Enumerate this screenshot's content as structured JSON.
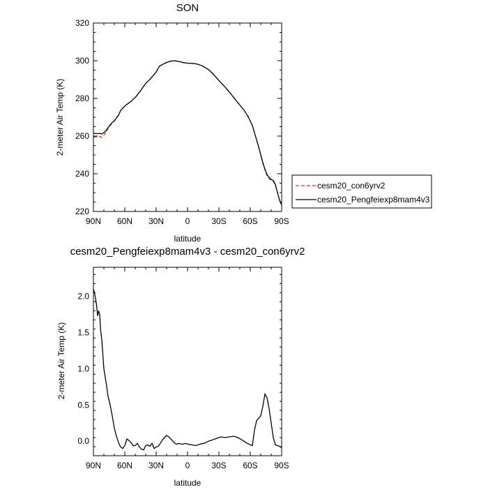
{
  "chart_data": [
    {
      "type": "line",
      "title": "SON",
      "xlabel": "latitude",
      "ylabel": "2-meter Air Temp (K)",
      "xlim": [
        90,
        -90
      ],
      "ylim": [
        220,
        320
      ],
      "x_ticks": [
        90,
        60,
        30,
        0,
        -30,
        -60,
        -90
      ],
      "x_tick_labels": [
        "90N",
        "60N",
        "30N",
        "0",
        "30S",
        "60S",
        "90S"
      ],
      "y_ticks": [
        220,
        240,
        260,
        280,
        300,
        320
      ],
      "y_tick_labels": [
        "220",
        "240",
        "260",
        "280",
        "300",
        "320"
      ],
      "legend_position": "right",
      "series": [
        {
          "name": "cesm20_con6yrv2",
          "color": "#e03030",
          "dash": "dashed",
          "x": [
            90,
            86,
            84,
            82,
            80,
            78,
            76,
            72,
            70,
            66,
            64,
            60,
            54,
            50,
            45,
            40,
            36,
            30,
            27,
            24,
            20,
            16,
            12,
            8,
            4,
            0,
            -6,
            -10,
            -14,
            -20,
            -24,
            -30,
            -36,
            -42,
            -48,
            -54,
            -58,
            -62,
            -66,
            -69,
            -72,
            -74,
            -76,
            -78,
            -80,
            -82,
            -84,
            -86,
            -88,
            -90
          ],
          "y": [
            259.5,
            259.5,
            259.8,
            259.3,
            260.5,
            262.0,
            264.0,
            267.0,
            268.0,
            271.0,
            273.5,
            276.0,
            278.5,
            280.5,
            284.0,
            288.0,
            290.0,
            294.0,
            297.0,
            298.0,
            299.0,
            299.7,
            299.9,
            299.6,
            299.0,
            298.7,
            298.5,
            298.1,
            297.3,
            295.3,
            293.3,
            289.5,
            286.0,
            282.0,
            277.8,
            273.8,
            270.3,
            265.5,
            258.0,
            252.0,
            245.5,
            242.0,
            239.0,
            237.5,
            236.5,
            236.0,
            234.0,
            230.0,
            226.0,
            223.5
          ]
        },
        {
          "name": "cesm20_Pengfeiexp8mam4v3",
          "color": "#000000",
          "dash": "solid",
          "x": [
            90,
            86,
            84,
            82,
            80,
            78,
            76,
            72,
            70,
            66,
            64,
            60,
            54,
            50,
            45,
            40,
            36,
            30,
            27,
            24,
            20,
            16,
            12,
            8,
            4,
            0,
            -6,
            -10,
            -14,
            -20,
            -24,
            -30,
            -36,
            -42,
            -48,
            -54,
            -58,
            -62,
            -66,
            -69,
            -72,
            -74,
            -76,
            -78,
            -80,
            -82,
            -84,
            -86,
            -88,
            -90
          ],
          "y": [
            261.5,
            261.3,
            261.4,
            261.2,
            261.8,
            262.8,
            264.5,
            267.3,
            268.1,
            271.1,
            273.6,
            276.0,
            278.5,
            280.5,
            284.0,
            288.0,
            290.1,
            294.0,
            297.0,
            298.0,
            299.1,
            299.8,
            300.0,
            299.6,
            299.0,
            298.7,
            298.5,
            298.1,
            297.3,
            295.3,
            293.3,
            289.5,
            286.0,
            282.0,
            277.8,
            273.8,
            270.3,
            265.6,
            258.1,
            252.3,
            246.0,
            242.5,
            239.6,
            238.0,
            237.0,
            236.4,
            234.3,
            230.0,
            226.0,
            223.5
          ]
        }
      ]
    },
    {
      "type": "line",
      "title": "cesm20_Pengfeiexp8mam4v3 - cesm20_con6yrv2",
      "xlabel": "latitude",
      "ylabel": "2-meter Air Temp (K)",
      "xlim": [
        90,
        -90
      ],
      "ylim": [
        -0.2,
        2.4
      ],
      "x_ticks": [
        90,
        60,
        30,
        0,
        -30,
        -60,
        -90
      ],
      "x_tick_labels": [
        "90N",
        "60N",
        "30N",
        "0",
        "30S",
        "60S",
        "90S"
      ],
      "y_ticks": [
        0.0,
        0.5,
        1.0,
        1.5,
        2.0
      ],
      "y_tick_labels": [
        "0.0",
        "0.5",
        "1.0",
        "1.5",
        "2.0"
      ],
      "series": [
        {
          "color": "#000000",
          "dash": "solid",
          "x": [
            90,
            89,
            88,
            87,
            86,
            85,
            84,
            83,
            82,
            80,
            78,
            76,
            74,
            72,
            70,
            68,
            66,
            64,
            62,
            60,
            58,
            56,
            54,
            52,
            50,
            48,
            46,
            44,
            42,
            40,
            38,
            36,
            34,
            32,
            30,
            28,
            26,
            24,
            22,
            20,
            18,
            16,
            14,
            12,
            10,
            8,
            6,
            4,
            2,
            0,
            -4,
            -8,
            -12,
            -16,
            -20,
            -24,
            -28,
            -32,
            -36,
            -40,
            -44,
            -48,
            -52,
            -56,
            -60,
            -62,
            -64,
            -66,
            -68,
            -70,
            -72,
            -74,
            -76,
            -78,
            -80,
            -82,
            -84,
            -86,
            -88,
            -90
          ],
          "y": [
            2.1,
            2.05,
            1.97,
            1.88,
            1.73,
            1.8,
            1.75,
            1.52,
            1.4,
            1.0,
            0.82,
            0.62,
            0.5,
            0.35,
            0.18,
            0.07,
            -0.02,
            -0.08,
            -0.1,
            -0.06,
            0.03,
            0.01,
            -0.02,
            -0.06,
            -0.06,
            -0.03,
            -0.08,
            -0.11,
            -0.12,
            -0.06,
            -0.05,
            -0.07,
            -0.03,
            -0.1,
            -0.08,
            -0.07,
            -0.03,
            0.02,
            0.05,
            0.08,
            0.06,
            0.03,
            0.0,
            -0.03,
            -0.04,
            -0.03,
            -0.04,
            -0.04,
            -0.03,
            -0.04,
            -0.05,
            -0.06,
            -0.04,
            -0.03,
            0.0,
            0.02,
            0.04,
            0.06,
            0.05,
            0.06,
            0.07,
            0.05,
            0.02,
            -0.02,
            -0.05,
            -0.06,
            0.15,
            0.28,
            0.32,
            0.35,
            0.48,
            0.65,
            0.6,
            0.45,
            0.25,
            0.05,
            -0.05,
            -0.06,
            -0.07,
            -0.09
          ]
        }
      ]
    }
  ]
}
